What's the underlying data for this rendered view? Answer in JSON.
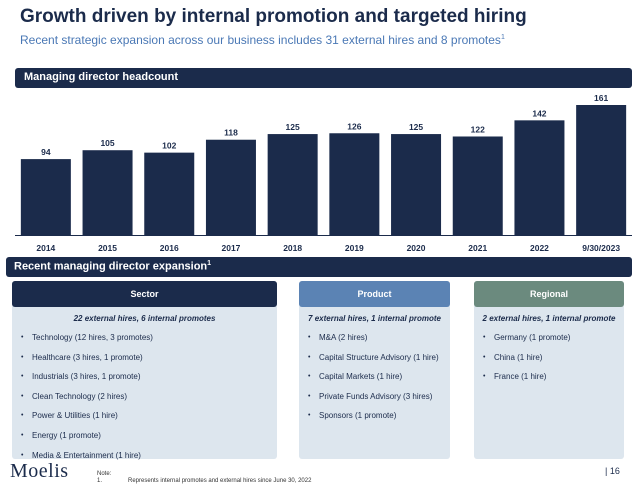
{
  "header": {
    "title": "Growth driven by internal promotion and targeted hiring",
    "subtitle": "Recent strategic expansion across our business includes 31 external hires and 8 promotes",
    "subtitle_note": "1"
  },
  "chart_section": {
    "label": "Managing director headcount"
  },
  "chart_data": {
    "type": "bar",
    "categories": [
      "2014",
      "2015",
      "2016",
      "2017",
      "2018",
      "2019",
      "2020",
      "2021",
      "2022",
      "9/30/2023"
    ],
    "values": [
      94,
      105,
      102,
      118,
      125,
      126,
      125,
      122,
      142,
      161
    ],
    "data_labels": [
      "94",
      "105",
      "102",
      "118",
      "125",
      "126",
      "125",
      "122",
      "142",
      "161"
    ],
    "ylim": [
      0,
      161
    ],
    "grid": false,
    "bar_color": "#1b2b4b"
  },
  "expansion": {
    "label": "Recent managing director expansion",
    "label_note": "1",
    "panels": [
      {
        "title": "Sector",
        "color": "#1b2b4b",
        "summary": "22 external hires, 6 internal promotes",
        "items": [
          "Technology (12 hires, 3 promotes)",
          "Healthcare (3 hires, 1 promote)",
          "Industrials (3 hires, 1 promote)",
          "Clean Technology (2 hires)",
          "Power & Utilities (1 hire)",
          "Energy (1 promote)",
          "Media & Entertainment (1 hire)"
        ]
      },
      {
        "title": "Product",
        "color": "#5b83b4",
        "summary": "7 external hires, 1 internal promote",
        "items": [
          "M&A (2 hires)",
          "Capital Structure Advisory (1 hire)",
          "Capital Markets (1 hire)",
          "Private Funds Advisory (3 hires)",
          "Sponsors (1 promote)"
        ]
      },
      {
        "title": "Regional",
        "color": "#6b8a7e",
        "summary": "2 external hires, 1 internal promote",
        "items": [
          "Germany (1 promote)",
          "China (1 hire)",
          "France (1 hire)"
        ]
      }
    ],
    "bullet": "•"
  },
  "footer": {
    "logo": "Moelis",
    "note_label": "Note:",
    "note_number": "1.",
    "note_text": "Represents internal promotes and external hires since June 30, 2022",
    "page_number": "|   16"
  }
}
